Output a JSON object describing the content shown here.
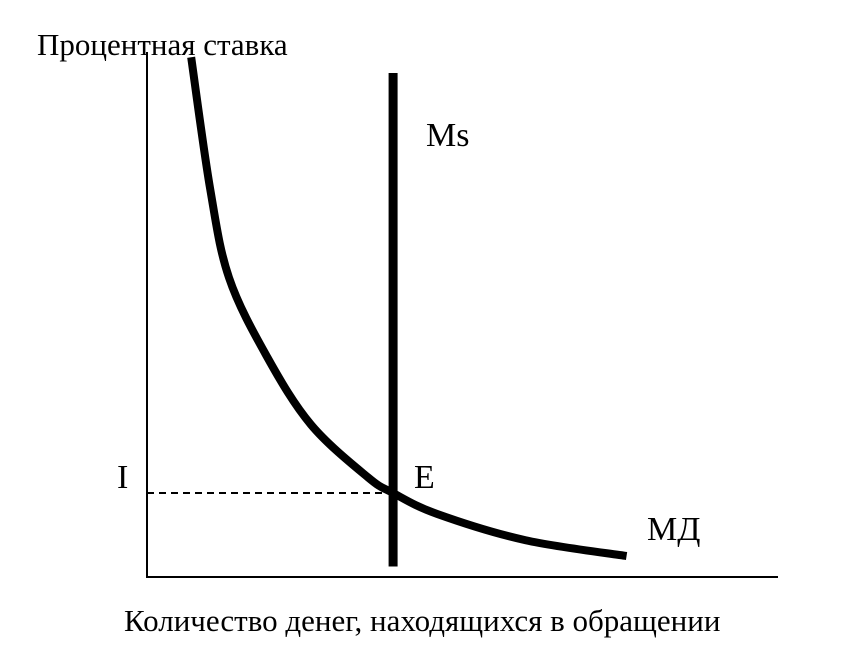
{
  "chart_data": {
    "type": "line",
    "ylabel": "Процентная ставка",
    "xlabel": "Количество денег, находящихся в обращении",
    "grid": false,
    "legend": "none",
    "colors": {
      "ink": "#000000",
      "background": "#ffffff"
    },
    "series": [
      {
        "name": "МД",
        "curve": "downward-sloping money demand",
        "points": [
          {
            "q": 0.07,
            "r": 0.99
          },
          {
            "q": 0.1,
            "r": 0.74
          },
          {
            "q": 0.13,
            "r": 0.57
          },
          {
            "q": 0.19,
            "r": 0.42
          },
          {
            "q": 0.26,
            "r": 0.29
          },
          {
            "q": 0.35,
            "r": 0.19
          },
          {
            "q": 0.39,
            "r": 0.16
          },
          {
            "q": 0.46,
            "r": 0.12
          },
          {
            "q": 0.6,
            "r": 0.07
          },
          {
            "q": 0.76,
            "r": 0.04
          }
        ]
      },
      {
        "name": "Ms",
        "curve": "vertical money supply",
        "q": 0.39,
        "r_range": [
          0.02,
          0.96
        ]
      }
    ],
    "annotations": {
      "equilibrium_label": "E",
      "rate_label": "I",
      "equilibrium": {
        "q": 0.39,
        "r": 0.16
      }
    }
  }
}
